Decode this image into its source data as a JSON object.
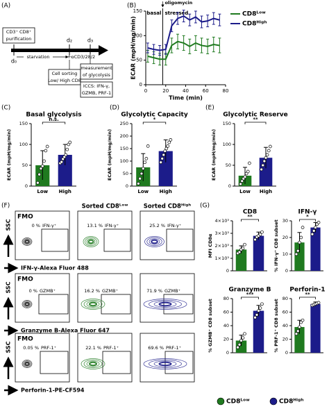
{
  "panel_labels": [
    "(A)",
    "(B)",
    "(C)",
    "(D)",
    "(E)",
    "(F)",
    "(G)"
  ],
  "schematic": {
    "purification": [
      "CD3⁺ CD8⁺",
      "purification"
    ],
    "days": [
      "d₀",
      "d₂",
      "d₃"
    ],
    "starvation": "starvation",
    "stimulation": "+αCD3/28/2",
    "sorting": [
      "Cell sorting",
      "Low/ High CD8"
    ],
    "measurement": [
      "measurement",
      "of glycolysis"
    ],
    "iccs": [
      "ICCS: IFN-γ,",
      "GZMB, PRF-1"
    ]
  },
  "chart_data": [
    {
      "type": "line",
      "x_label": "Time (min)",
      "y_label": "ECAR (mpH/mg/min)",
      "x": [
        2,
        8,
        14,
        20,
        26,
        32,
        38,
        44,
        50,
        56,
        62,
        68,
        74
      ],
      "xlim": [
        0,
        80
      ],
      "xticks": [
        0,
        20,
        40,
        60,
        80
      ],
      "ylim": [
        0,
        150
      ],
      "yticks": [
        0,
        50,
        100,
        150
      ],
      "annotations": [
        {
          "text": "oligomycin",
          "x": 17
        }
      ],
      "phase_labels": [
        "basal",
        "stressed"
      ],
      "legend": "outside right",
      "series": [
        {
          "name": "CD8ᴸᵒʷ",
          "color": "#1f7a1f",
          "values": [
            58,
            55,
            52,
            52,
            80,
            88,
            85,
            78,
            85,
            80,
            78,
            82,
            80
          ],
          "errors": [
            12,
            12,
            12,
            12,
            15,
            15,
            15,
            15,
            15,
            15,
            15,
            15,
            15
          ]
        },
        {
          "name": "CD8ᴴⁱᵍʰ",
          "color": "#1c1c8a",
          "values": [
            75,
            72,
            70,
            72,
            120,
            135,
            140,
            132,
            138,
            128,
            130,
            135,
            132
          ],
          "errors": [
            10,
            10,
            10,
            10,
            12,
            12,
            12,
            12,
            12,
            12,
            12,
            12,
            12
          ]
        }
      ]
    },
    {
      "type": "bar",
      "title": "Basal glycolysis",
      "y_label": "ECAR (mpH/mg/min)",
      "categories": [
        "Low",
        "High"
      ],
      "colors": [
        "#1f7a1f",
        "#1c1c8a"
      ],
      "values": [
        50,
        75
      ],
      "errors": [
        35,
        25
      ],
      "points": [
        [
          8,
          28,
          42,
          48,
          60,
          85,
          95
        ],
        [
          55,
          58,
          65,
          70,
          75,
          88,
          100,
          105
        ]
      ],
      "ylim": [
        0,
        150
      ],
      "yticks": [
        0,
        50,
        100,
        150
      ],
      "significance": "n.s."
    },
    {
      "type": "bar",
      "title": "Glycolytic Capacity",
      "y_label": "ECAR (mpH/mg/min)",
      "categories": [
        "Low",
        "High"
      ],
      "colors": [
        "#1f7a1f",
        "#1c1c8a"
      ],
      "values": [
        75,
        140
      ],
      "errors": [
        55,
        45
      ],
      "points": [
        [
          10,
          30,
          50,
          70,
          95,
          110,
          160
        ],
        [
          95,
          110,
          125,
          140,
          150,
          160,
          175,
          185
        ]
      ],
      "ylim": [
        0,
        250
      ],
      "yticks": [
        0,
        50,
        100,
        150,
        200,
        250
      ],
      "significance": "*"
    },
    {
      "type": "bar",
      "title": "Glycolytic Reserve",
      "y_label": "ECAR (mpH/mg/min)",
      "categories": [
        "Low",
        "High"
      ],
      "colors": [
        "#1f7a1f",
        "#1c1c8a"
      ],
      "values": [
        25,
        68
      ],
      "errors": [
        20,
        25
      ],
      "points": [
        [
          5,
          12,
          18,
          22,
          30,
          35,
          55
        ],
        [
          40,
          50,
          60,
          68,
          75,
          85,
          95
        ]
      ],
      "ylim": [
        0,
        150
      ],
      "yticks": [
        0,
        50,
        100,
        150
      ],
      "significance": "**"
    },
    {
      "type": "bar",
      "title": "CD8",
      "y_label": "MFI CD8α",
      "colors": [
        "#1f7a1f",
        "#1c1c8a"
      ],
      "values": [
        1700,
        2800
      ],
      "errors": [
        300,
        300
      ],
      "points": [
        [
          1400,
          1500,
          1700,
          1800,
          2100
        ],
        [
          2500,
          2700,
          2800,
          2900,
          3100
        ]
      ],
      "ylim": [
        0,
        4000
      ],
      "yticks": [
        0,
        {
          "value": 1000,
          "label": "1×10³"
        },
        {
          "value": 2000,
          "label": "2×10³"
        },
        {
          "value": 3000,
          "label": "3×10³"
        },
        {
          "value": 4000,
          "label": "4×10³"
        }
      ],
      "significance": "**"
    },
    {
      "type": "bar",
      "title": "IFN-γ",
      "y_label": "% IFN-γ⁺ CD8 subset",
      "colors": [
        "#1f7a1f",
        "#1c1c8a"
      ],
      "values": [
        17,
        26
      ],
      "errors": [
        6,
        3
      ],
      "points": [
        [
          10,
          12,
          17,
          20,
          26
        ],
        [
          22,
          24,
          26,
          28,
          29
        ]
      ],
      "ylim": [
        0,
        30
      ],
      "yticks": [
        0,
        10,
        20,
        30
      ],
      "significance": "*"
    },
    {
      "type": "bar",
      "title": "Granzyme B",
      "y_label": "% GZMB⁺ CD8 subset",
      "colors": [
        "#1f7a1f",
        "#1c1c8a"
      ],
      "values": [
        18,
        62
      ],
      "errors": [
        8,
        8
      ],
      "points": [
        [
          8,
          12,
          18,
          22,
          28
        ],
        [
          52,
          56,
          62,
          66,
          72
        ]
      ],
      "ylim": [
        0,
        80
      ],
      "yticks": [
        0,
        20,
        40,
        60,
        80
      ],
      "significance": "***"
    },
    {
      "type": "bar",
      "title": "Perforin-1",
      "y_label": "% PRF-1⁺ CD8 subset",
      "colors": [
        "#1f7a1f",
        "#1c1c8a"
      ],
      "values": [
        38,
        72
      ],
      "errors": [
        10,
        3
      ],
      "points": [
        [
          28,
          32,
          38,
          45,
          48
        ],
        [
          70,
          71,
          72,
          73,
          74
        ]
      ],
      "ylim": [
        0,
        80
      ],
      "yticks": [
        0,
        20,
        40,
        60,
        80
      ],
      "significance": "**"
    }
  ],
  "group_legend": {
    "names": [
      "CD8ᴸᵒʷ",
      "CD8ᴴⁱᵍʰ"
    ],
    "colors": [
      "#1f7a1f",
      "#1c1c8a"
    ]
  },
  "flow": {
    "fmo_label": "FMO",
    "columns": [
      "Sorted CD8ᴸᵒʷ",
      "Sorted CD8ᴴⁱᵍʰ"
    ],
    "y_axis": "SSC",
    "rows": [
      {
        "x_axis": "IFN-γ-Alexa Fluor 488",
        "gate": "IFN-γ⁺",
        "percents": [
          "0 %",
          "13.1 %",
          "25.2 %"
        ]
      },
      {
        "x_axis": "Granzyme B-Alexa Fluor 647",
        "gate": "GZMB⁺",
        "percents": [
          "0 %",
          "16.2 %",
          "71.9 %"
        ]
      },
      {
        "x_axis": "Perforin-1-PE-CF594",
        "gate": "PRF-1⁺",
        "percents": [
          "0.05 %",
          "22.1 %",
          "69.6 %"
        ]
      }
    ]
  }
}
